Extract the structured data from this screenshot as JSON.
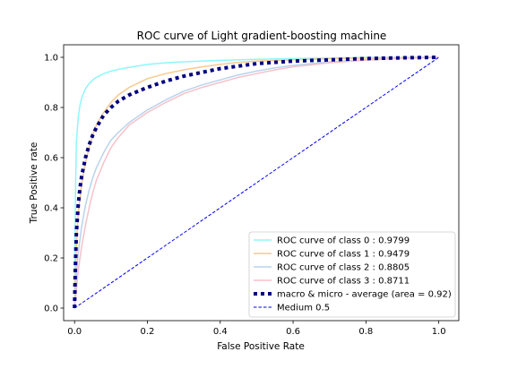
{
  "chart_data": {
    "type": "line",
    "title": "ROC curve of Light gradient-boosting machine",
    "xlabel": "False Positive Rate",
    "ylabel": "True Positive rate",
    "xlim": [
      -0.03,
      1.055
    ],
    "ylim": [
      -0.05,
      1.05
    ],
    "xticks": [
      "0.0",
      "0.2",
      "0.4",
      "0.6",
      "0.8",
      "1.0"
    ],
    "yticks": [
      "0.0",
      "0.2",
      "0.4",
      "0.6",
      "0.8",
      "1.0"
    ],
    "grid": false,
    "legend_position": "lower-right",
    "series": [
      {
        "name": "ROC curve of class 0 : 0.9799",
        "color": "#8df7fb",
        "style": "solid",
        "x": [
          0,
          0.001,
          0.003,
          0.005,
          0.01,
          0.015,
          0.02,
          0.03,
          0.04,
          0.05,
          0.06,
          0.08,
          0.1,
          0.12,
          0.15,
          0.2,
          0.25,
          0.3,
          0.4,
          0.5,
          0.6,
          0.7,
          0.8,
          0.9,
          1.0
        ],
        "y": [
          0,
          0.25,
          0.5,
          0.66,
          0.76,
          0.81,
          0.84,
          0.875,
          0.895,
          0.91,
          0.92,
          0.935,
          0.945,
          0.952,
          0.96,
          0.972,
          0.978,
          0.982,
          0.988,
          0.992,
          0.995,
          0.997,
          0.999,
          1.0,
          1.0
        ]
      },
      {
        "name": "ROC curve of class 1 : 0.9479",
        "color": "#f9c98f",
        "style": "solid",
        "x": [
          0,
          0.002,
          0.005,
          0.01,
          0.02,
          0.03,
          0.04,
          0.05,
          0.06,
          0.08,
          0.1,
          0.12,
          0.15,
          0.2,
          0.25,
          0.3,
          0.35,
          0.4,
          0.45,
          0.5,
          0.6,
          0.7,
          0.8,
          0.9,
          1.0
        ],
        "y": [
          0,
          0.12,
          0.25,
          0.38,
          0.5,
          0.58,
          0.64,
          0.69,
          0.73,
          0.78,
          0.82,
          0.85,
          0.88,
          0.915,
          0.935,
          0.95,
          0.962,
          0.972,
          0.98,
          0.985,
          0.99,
          0.994,
          0.997,
          0.999,
          1.0
        ]
      },
      {
        "name": "ROC curve of class 2 : 0.8805",
        "color": "#b9d3ee",
        "style": "solid",
        "x": [
          0,
          0.005,
          0.01,
          0.02,
          0.03,
          0.04,
          0.05,
          0.06,
          0.08,
          0.1,
          0.12,
          0.15,
          0.18,
          0.2,
          0.25,
          0.3,
          0.35,
          0.4,
          0.45,
          0.5,
          0.55,
          0.6,
          0.7,
          0.8,
          0.9,
          1.0
        ],
        "y": [
          0,
          0.13,
          0.22,
          0.33,
          0.41,
          0.47,
          0.52,
          0.56,
          0.62,
          0.67,
          0.7,
          0.74,
          0.77,
          0.79,
          0.83,
          0.865,
          0.89,
          0.91,
          0.93,
          0.945,
          0.958,
          0.968,
          0.982,
          0.99,
          0.997,
          1.0
        ]
      },
      {
        "name": "ROC curve of class 3 : 0.8711",
        "color": "#f7c1c9",
        "style": "solid",
        "x": [
          0,
          0.005,
          0.01,
          0.02,
          0.03,
          0.04,
          0.05,
          0.06,
          0.08,
          0.1,
          0.12,
          0.15,
          0.18,
          0.2,
          0.25,
          0.3,
          0.35,
          0.4,
          0.45,
          0.5,
          0.55,
          0.6,
          0.7,
          0.8,
          0.9,
          1.0
        ],
        "y": [
          0,
          0.07,
          0.15,
          0.25,
          0.33,
          0.4,
          0.46,
          0.51,
          0.58,
          0.64,
          0.68,
          0.73,
          0.76,
          0.78,
          0.82,
          0.855,
          0.88,
          0.9,
          0.92,
          0.935,
          0.95,
          0.962,
          0.978,
          0.989,
          0.996,
          1.0
        ]
      },
      {
        "name": "macro & micro - average (area = 0.92)",
        "color": "#000080",
        "style": "dotted",
        "x": [
          0,
          0.002,
          0.005,
          0.01,
          0.015,
          0.02,
          0.03,
          0.04,
          0.05,
          0.06,
          0.08,
          0.1,
          0.12,
          0.15,
          0.2,
          0.25,
          0.3,
          0.35,
          0.4,
          0.5,
          0.6,
          0.7,
          0.8,
          0.9,
          1.0
        ],
        "y": [
          0,
          0.15,
          0.3,
          0.41,
          0.48,
          0.53,
          0.6,
          0.65,
          0.69,
          0.72,
          0.77,
          0.8,
          0.825,
          0.85,
          0.88,
          0.905,
          0.925,
          0.94,
          0.955,
          0.975,
          0.985,
          0.99,
          0.995,
          0.998,
          1.0
        ]
      },
      {
        "name": "Medium 0.5",
        "color": "#0000ff",
        "style": "dashed",
        "x": [
          0,
          1
        ],
        "y": [
          0,
          1
        ]
      }
    ]
  }
}
